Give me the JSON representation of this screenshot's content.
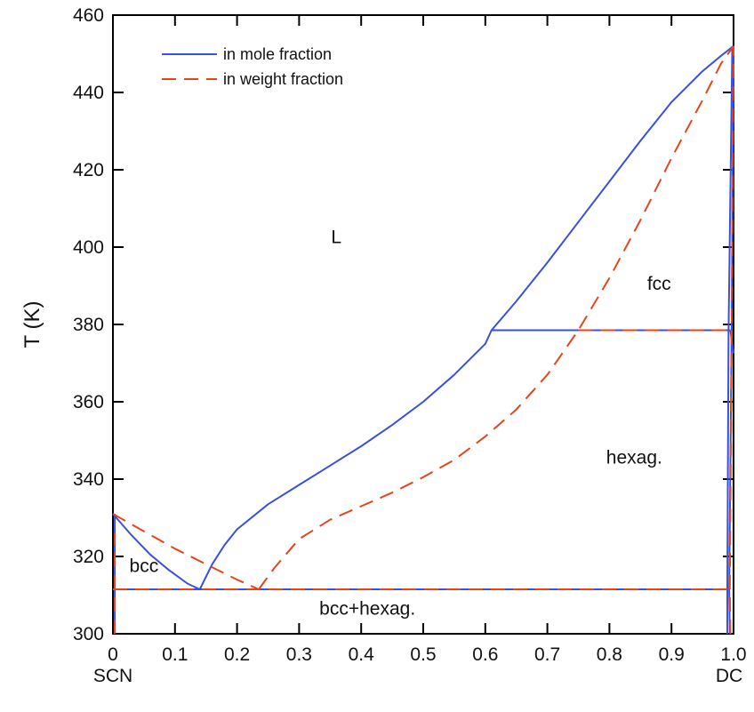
{
  "chart_data": {
    "type": "line",
    "title": "",
    "xlabel": "",
    "ylabel": "T  (K)",
    "xlim": [
      0,
      1
    ],
    "ylim": [
      300,
      460
    ],
    "x_ticks": [
      0,
      0.1,
      0.2,
      0.3,
      0.4,
      0.5,
      0.6,
      0.7,
      0.8,
      0.9,
      1.0
    ],
    "x_tick_labels": [
      "0",
      "0.1",
      "0.2",
      "0.3",
      "0.4",
      "0.5",
      "0.6",
      "0.7",
      "0.8",
      "0.9",
      "1.0"
    ],
    "y_ticks": [
      300,
      320,
      340,
      360,
      380,
      400,
      420,
      440,
      460
    ],
    "y_tick_labels": [
      "300",
      "320",
      "340",
      "360",
      "380",
      "400",
      "420",
      "440",
      "460"
    ],
    "x_end_labels": {
      "left": "SCN",
      "right": "DC"
    },
    "grid": false,
    "legend_position": "top-left",
    "colors": {
      "mole": "#3b4fe0",
      "weight": "#e8441a"
    },
    "series": [
      {
        "name": "in mole fraction",
        "style": "solid",
        "segments": [
          {
            "role": "liquidus-left",
            "points": [
              [
                0,
                331
              ],
              [
                0.03,
                325.5
              ],
              [
                0.06,
                320.5
              ],
              [
                0.09,
                316.5
              ],
              [
                0.12,
                313
              ],
              [
                0.14,
                311.5
              ]
            ]
          },
          {
            "role": "liquidus-right",
            "points": [
              [
                0.14,
                311.5
              ],
              [
                0.16,
                318
              ],
              [
                0.18,
                323
              ],
              [
                0.2,
                327
              ],
              [
                0.25,
                333.5
              ],
              [
                0.3,
                338.5
              ],
              [
                0.35,
                343.5
              ],
              [
                0.4,
                348.5
              ],
              [
                0.45,
                354
              ],
              [
                0.5,
                360
              ],
              [
                0.55,
                367
              ],
              [
                0.6,
                375
              ],
              [
                0.61,
                378.5
              ],
              [
                0.65,
                386
              ],
              [
                0.7,
                396
              ],
              [
                0.75,
                406.5
              ],
              [
                0.8,
                417
              ],
              [
                0.85,
                427.5
              ],
              [
                0.9,
                437.5
              ],
              [
                0.95,
                445.5
              ],
              [
                0.98,
                449.5
              ],
              [
                1.0,
                452
              ]
            ]
          },
          {
            "role": "eutectic",
            "points": [
              [
                0,
                311.5
              ],
              [
                0.99,
                311.5
              ]
            ]
          },
          {
            "role": "peritectic",
            "points": [
              [
                0.61,
                378.5
              ],
              [
                0.995,
                378.5
              ]
            ]
          },
          {
            "role": "solvus-left",
            "points": [
              [
                0.003,
                300
              ],
              [
                0.003,
                331
              ]
            ]
          },
          {
            "role": "solvus-right",
            "points": [
              [
                0.99,
                300
              ],
              [
                0.99,
                311.5
              ],
              [
                0.992,
                378.5
              ],
              [
                0.998,
                452
              ]
            ]
          },
          {
            "role": "solvus-right-b",
            "points": [
              [
                0.994,
                300
              ],
              [
                0.993,
                311.5
              ],
              [
                0.997,
                378.5
              ],
              [
                1.0,
                452
              ]
            ]
          },
          {
            "role": "solvus-right-c",
            "points": [
              [
                0.995,
                378.5
              ],
              [
                1.0,
                372.5
              ]
            ]
          }
        ]
      },
      {
        "name": "in weight fraction",
        "style": "dashed",
        "segments": [
          {
            "role": "liquidus-left",
            "points": [
              [
                0,
                331
              ],
              [
                0.05,
                326.5
              ],
              [
                0.1,
                322
              ],
              [
                0.15,
                318
              ],
              [
                0.2,
                314
              ],
              [
                0.235,
                311.5
              ]
            ]
          },
          {
            "role": "liquidus-right",
            "points": [
              [
                0.235,
                311.5
              ],
              [
                0.26,
                317
              ],
              [
                0.3,
                324.5
              ],
              [
                0.35,
                329.5
              ],
              [
                0.4,
                333
              ],
              [
                0.45,
                336.5
              ],
              [
                0.5,
                340.5
              ],
              [
                0.55,
                345
              ],
              [
                0.6,
                351
              ],
              [
                0.65,
                358
              ],
              [
                0.7,
                367
              ],
              [
                0.75,
                378.5
              ],
              [
                0.8,
                392
              ],
              [
                0.85,
                407
              ],
              [
                0.9,
                423
              ],
              [
                0.95,
                438
              ],
              [
                0.98,
                447.5
              ],
              [
                1.0,
                452
              ]
            ]
          },
          {
            "role": "eutectic",
            "points": [
              [
                0,
                311.5
              ],
              [
                0.99,
                311.5
              ]
            ]
          },
          {
            "role": "peritectic",
            "points": [
              [
                0.75,
                378.5
              ],
              [
                0.995,
                378.5
              ]
            ]
          },
          {
            "role": "solvus-left",
            "points": [
              [
                0.003,
                300
              ],
              [
                0.003,
                326
              ]
            ]
          },
          {
            "role": "solvus-right",
            "points": [
              [
                0.995,
                300
              ],
              [
                0.994,
                311.5
              ],
              [
                0.997,
                378.5
              ],
              [
                1.0,
                452
              ]
            ]
          }
        ]
      }
    ],
    "annotations": [
      {
        "text": "L",
        "x": 0.36,
        "y": 401
      },
      {
        "text": "fcc",
        "x": 0.88,
        "y": 389
      },
      {
        "text": "hexag.",
        "x": 0.84,
        "y": 344
      },
      {
        "text": "bcc",
        "x": 0.05,
        "y": 316
      },
      {
        "text": "bcc+hexag.",
        "x": 0.41,
        "y": 305
      }
    ]
  }
}
